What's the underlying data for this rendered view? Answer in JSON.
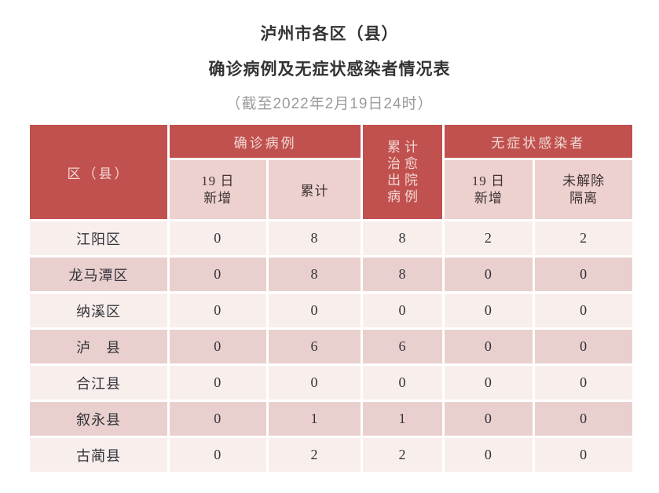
{
  "header": {
    "title_line1": "泸州市各区（县）",
    "title_line2": "确诊病例及无症状感染者情况表",
    "subtitle": "（截至2022年2月19日24时）"
  },
  "table": {
    "headers": {
      "region": "区（县）",
      "confirmed_group": "确诊病例",
      "confirmed_new_lines": [
        "19 日",
        "新增"
      ],
      "confirmed_total": "累计",
      "cured_discharged_lines": [
        "累计",
        "治愈",
        "出院",
        "病例"
      ],
      "asymptomatic_group": "无症状感染者",
      "asymptomatic_new_lines": [
        "19 日",
        "新增"
      ],
      "quarantine_lines": [
        "未解除",
        "隔离"
      ]
    },
    "rows": [
      {
        "region": "江阳区",
        "values": [
          "0",
          "8",
          "8",
          "2",
          "2"
        ]
      },
      {
        "region": "龙马潭区",
        "values": [
          "0",
          "8",
          "8",
          "0",
          "0"
        ]
      },
      {
        "region": "纳溪区",
        "values": [
          "0",
          "0",
          "0",
          "0",
          "0"
        ]
      },
      {
        "region": "泸　县",
        "values": [
          "0",
          "6",
          "6",
          "0",
          "0"
        ]
      },
      {
        "region": "合江县",
        "values": [
          "0",
          "0",
          "0",
          "0",
          "0"
        ]
      },
      {
        "region": "叙永县",
        "values": [
          "0",
          "1",
          "1",
          "0",
          "0"
        ]
      },
      {
        "region": "古蔺县",
        "values": [
          "0",
          "2",
          "2",
          "0",
          "0"
        ]
      }
    ]
  },
  "colors": {
    "header_red": "#c0514e",
    "header_red_text": "#f2d9d6",
    "subheader_pink": "#ecd1cf",
    "row_light": "#f8efec",
    "row_dark": "#e9d0ce",
    "title_text": "#333333",
    "subtitle_gray": "#9b9b9b",
    "cell_text": "#33333b"
  }
}
